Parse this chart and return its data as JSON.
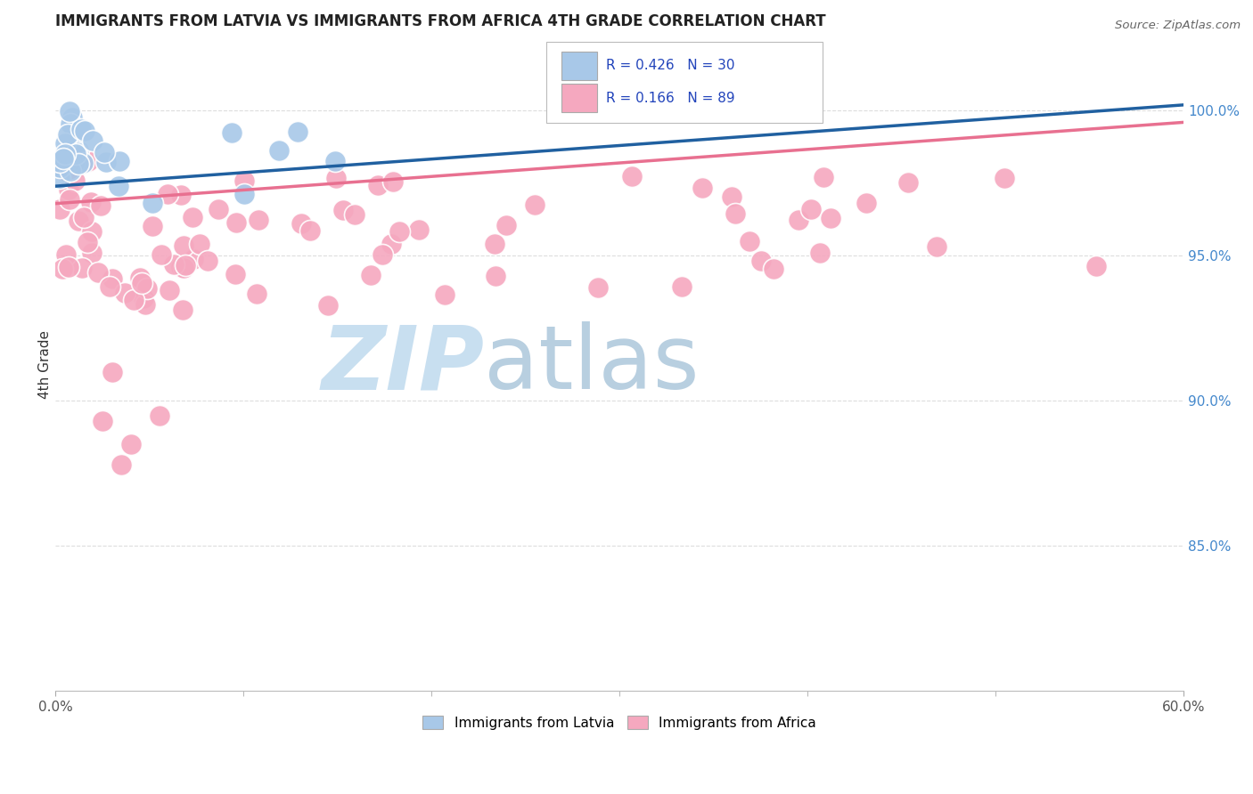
{
  "title": "IMMIGRANTS FROM LATVIA VS IMMIGRANTS FROM AFRICA 4TH GRADE CORRELATION CHART",
  "source": "Source: ZipAtlas.com",
  "ylabel": "4th Grade",
  "latvia_R": 0.426,
  "latvia_N": 30,
  "africa_R": 0.166,
  "africa_N": 89,
  "latvia_color": "#a8c8e8",
  "africa_color": "#f5a8bf",
  "trendline_latvia_color": "#2060a0",
  "trendline_africa_color": "#e87090",
  "xlim": [
    0.0,
    0.6
  ],
  "ylim": [
    0.8,
    1.025
  ],
  "y_tick_vals": [
    0.85,
    0.9,
    0.95,
    1.0
  ],
  "y_tick_labels": [
    "85.0%",
    "90.0%",
    "95.0%",
    "100.0%"
  ],
  "background_color": "#ffffff",
  "grid_color": "#dddddd",
  "watermark_zip": "ZIP",
  "watermark_atlas": "atlas",
  "watermark_color_zip": "#c8dff0",
  "watermark_color_atlas": "#b8cfe0"
}
